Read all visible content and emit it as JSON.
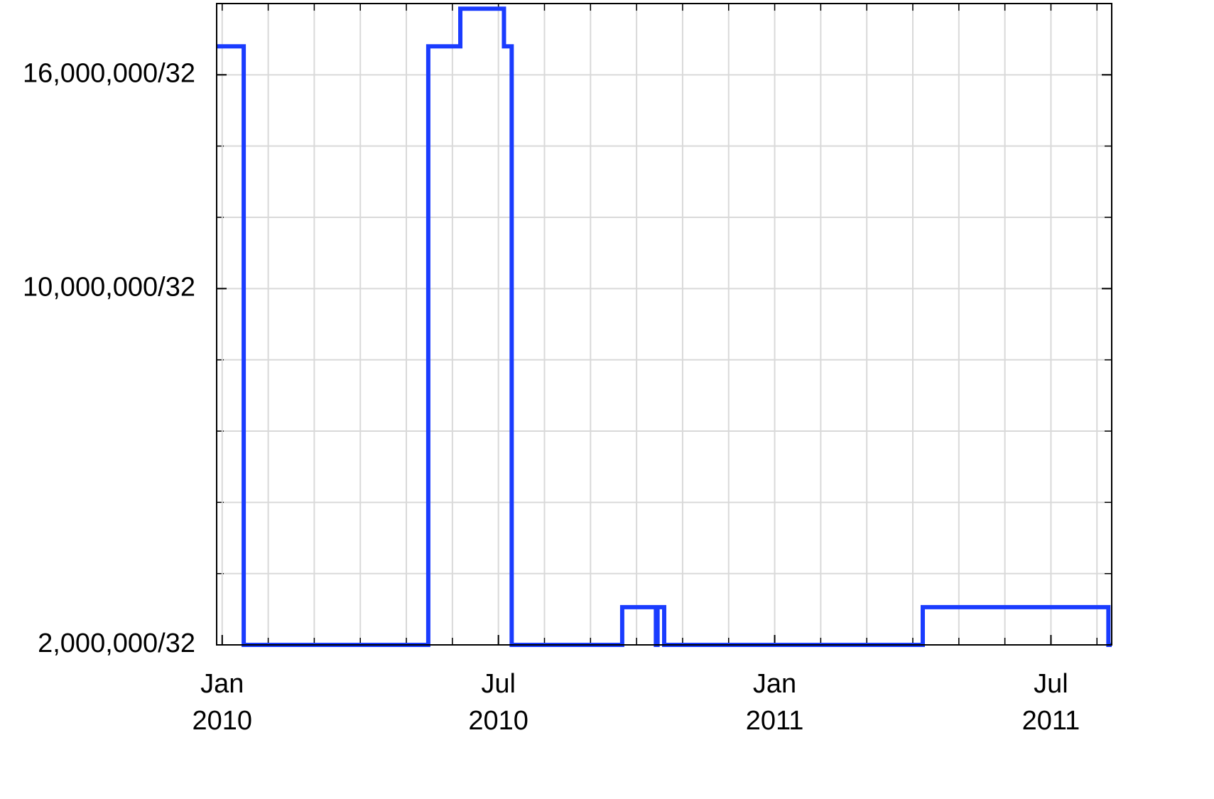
{
  "chart_data": {
    "type": "line",
    "step": "post",
    "x": [
      2009.99,
      2010.039,
      2010.373,
      2010.431,
      2010.51,
      2010.524,
      2010.724,
      2010.785,
      2010.788,
      2010.8,
      2011.268,
      2011.604,
      2011.61
    ],
    "series": [
      {
        "color": "#1a3cff",
        "values": [
          525000,
          62500,
          525000,
          558000,
          525000,
          62500,
          89000,
          62500,
          89000,
          62500,
          89000,
          62500,
          62500
        ]
      }
    ],
    "xlim": [
      2009.99,
      2011.61
    ],
    "xticks": [
      {
        "value": 2010,
        "label": "Jan\n2010"
      },
      {
        "value": 2010.5,
        "label": "Jul\n2010"
      },
      {
        "value": 2011,
        "label": "Jan\n2011"
      },
      {
        "value": 2011.5,
        "label": "Jul\n2011"
      }
    ],
    "ylim": [
      62500,
      562500
    ],
    "yticks": [
      {
        "value": 62500,
        "label": "2,000,000/32"
      },
      {
        "value": 312500,
        "label": "10,000,000/32"
      },
      {
        "value": 500000,
        "label": "16,000,000/32"
      }
    ],
    "grid": true
  }
}
